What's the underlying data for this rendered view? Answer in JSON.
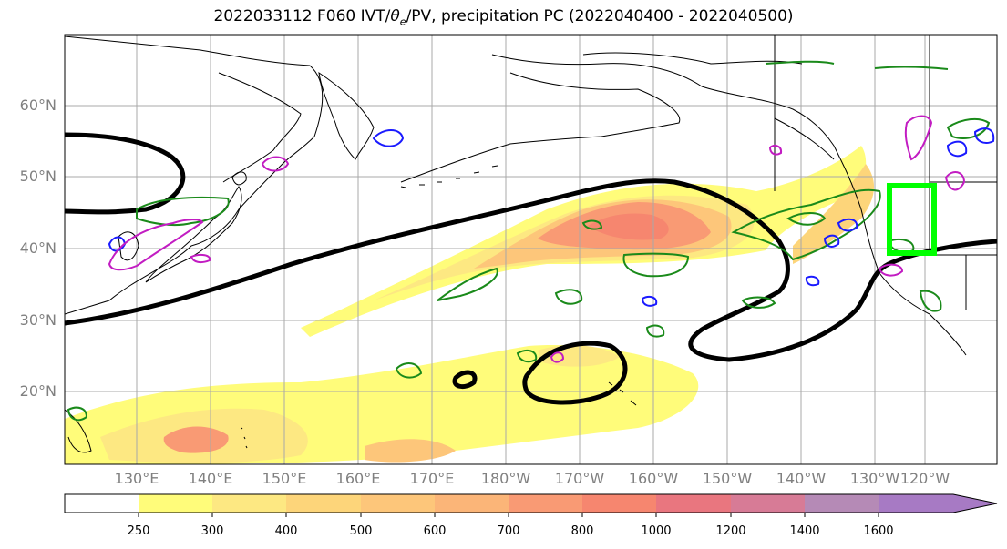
{
  "title": {
    "prefix": "2022033112 F060 IVT/",
    "theta": "θ",
    "theta_sub": "e",
    "suffix": "/PV, precipitation PC (2022040400 - 2022040500)"
  },
  "lat_labels": [
    "60°N",
    "50°N",
    "40°N",
    "30°N",
    "20°N"
  ],
  "lon_labels": [
    "130°E",
    "140°E",
    "150°E",
    "160°E",
    "170°E",
    "180°W",
    "170°W",
    "160°W",
    "150°W",
    "140°W",
    "130°W",
    "120°W"
  ],
  "colorbar": {
    "ticks": [
      "250",
      "300",
      "400",
      "500",
      "600",
      "700",
      "800",
      "1000",
      "1200",
      "1400",
      "1600"
    ],
    "colors": [
      "#ffffff",
      "#fffc7a",
      "#fde882",
      "#fdd57a",
      "#fdc67a",
      "#fbb578",
      "#f99a74",
      "#f6866f",
      "#e9767f",
      "#d77b96",
      "#b58ab6",
      "#a77ac4"
    ]
  },
  "colors": {
    "pv_contour": "#000000",
    "green_contour": "#1a8a1a",
    "blue_contour": "#1a1aff",
    "magenta_contour": "#c21cc2",
    "highlight_box": "#00ff00"
  }
}
